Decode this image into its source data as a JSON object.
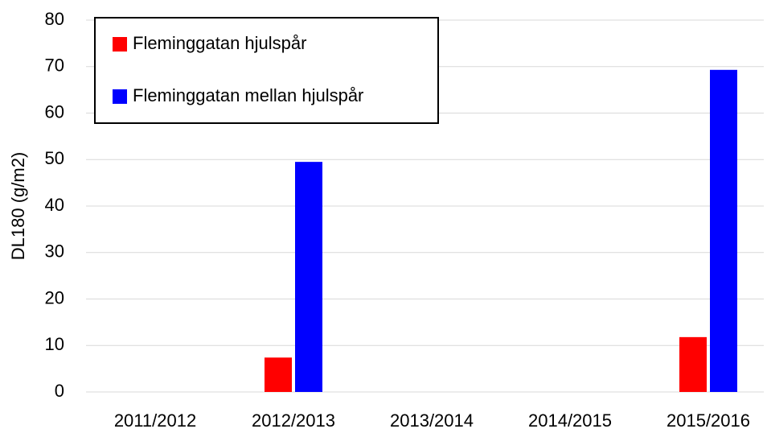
{
  "chart_data": {
    "type": "bar",
    "y_label": "DL180 (g/m2)",
    "categories": [
      "2011/2012",
      "2012/2013",
      "2013/2014",
      "2014/2015",
      "2015/2016"
    ],
    "series": [
      {
        "name": "Fleminggatan hjulspår",
        "color": "#ff0000",
        "values": [
          null,
          7.4,
          null,
          null,
          11.8
        ]
      },
      {
        "name": "Fleminggatan mellan hjulspår",
        "color": "#0000ff",
        "values": [
          null,
          49.5,
          null,
          null,
          69.3
        ]
      }
    ],
    "ylim": [
      0,
      80
    ],
    "yticks": [
      0,
      10,
      20,
      30,
      40,
      50,
      60,
      70,
      80
    ],
    "grid": true,
    "legend": "top-left"
  }
}
